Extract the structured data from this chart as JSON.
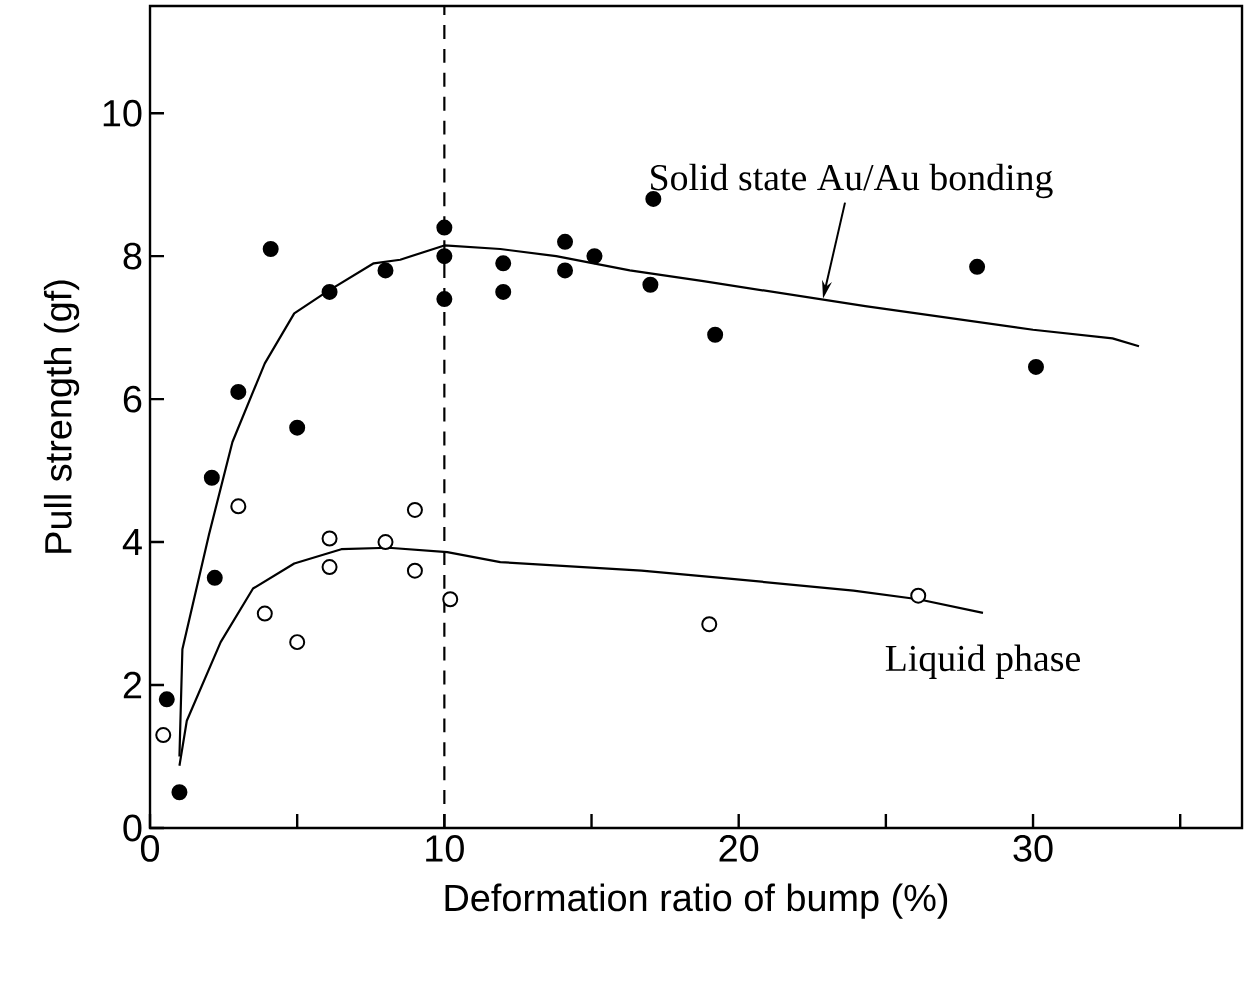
{
  "chart_data": {
    "type": "scatter",
    "xlabel": "Deformation ratio of bump    (%)",
    "ylabel": "Pull strength   (gf)",
    "xlim": [
      0,
      37.1
    ],
    "ylim": [
      0,
      11.5
    ],
    "xticks": [
      0,
      {
        "value": 5,
        "label": null
      },
      10,
      {
        "value": 15,
        "label": null
      },
      20,
      {
        "value": 25,
        "label": null
      },
      30,
      {
        "value": 35,
        "label": null
      }
    ],
    "yticks": [
      0,
      2,
      4,
      6,
      8,
      10
    ],
    "series": [
      {
        "color": "#000000",
        "marker": "circle",
        "x": [
          0.57,
          1.0,
          2.1,
          2.2,
          3.0,
          4.1,
          5.0,
          6.1,
          8.0,
          10.0,
          10.0,
          10.0,
          12.0,
          12.0,
          14.1,
          14.1,
          15.1,
          17.1,
          17.0,
          19.2,
          28.1,
          30.1
        ],
        "values": [
          1.8,
          0.5,
          4.9,
          3.5,
          6.1,
          8.1,
          5.6,
          7.5,
          7.8,
          8.4,
          8.0,
          7.4,
          7.9,
          7.5,
          8.2,
          7.8,
          8.0,
          8.8,
          7.6,
          6.9,
          7.85,
          6.45
        ]
      },
      {
        "color": "#ffffff",
        "marker": "circle",
        "x": [
          0.45,
          3.0,
          3.9,
          5.0,
          6.1,
          6.1,
          8.0,
          9.0,
          9.0,
          10.2,
          19.0,
          26.1
        ],
        "values": [
          1.3,
          4.5,
          3.0,
          2.6,
          4.05,
          3.65,
          4.0,
          4.45,
          3.6,
          3.2,
          2.85,
          3.25
        ]
      },
      {
        "type": "line",
        "color": "#000000",
        "x": [
          1.0,
          1.1,
          2.0,
          2.8,
          3.9,
          4.9,
          6.0,
          7.6,
          8.5,
          10.0,
          11.9,
          13.8,
          16.3,
          18.8,
          24.3,
          30.0,
          32.7,
          33.6
        ],
        "values": [
          1.0,
          2.5,
          4.1,
          5.4,
          6.5,
          7.2,
          7.5,
          7.9,
          7.95,
          8.15,
          8.1,
          8.0,
          7.8,
          7.65,
          7.3,
          6.97,
          6.85,
          6.74
        ]
      },
      {
        "type": "line",
        "color": "#000000",
        "x": [
          1.0,
          1.25,
          2.4,
          3.5,
          4.9,
          6.5,
          8.1,
          10.1,
          11.9,
          16.7,
          19.4,
          23.9,
          26.1,
          28.3
        ],
        "values": [
          0.87,
          1.5,
          2.6,
          3.35,
          3.7,
          3.9,
          3.92,
          3.86,
          3.72,
          3.6,
          3.5,
          3.32,
          3.2,
          3.01
        ]
      }
    ],
    "ref_lines": [
      {
        "axis": "x",
        "value": 10,
        "line_style": "dashed",
        "color": "#000000"
      }
    ],
    "annotations": [
      {
        "text": "Solid state Au/Au bonding",
        "x": 23.0,
        "y": 7.35
      },
      {
        "text": "Liquid phase",
        "x": 28.3,
        "y": 3.0
      }
    ]
  }
}
